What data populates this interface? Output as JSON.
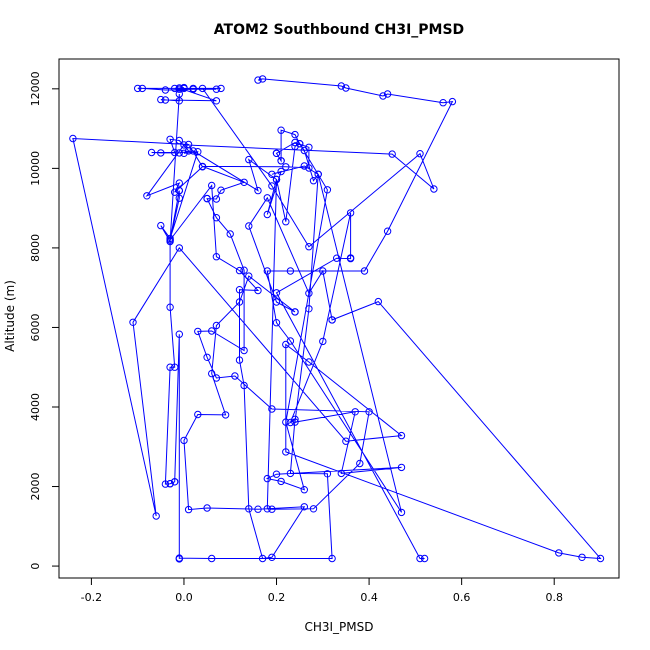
{
  "chart_data": {
    "type": "line",
    "title": "ATOM2 Southbound CH3I_PMSD",
    "xlabel": "CH3I_PMSD",
    "ylabel": "Altitude (m)",
    "xlim": [
      -0.27,
      0.94
    ],
    "ylim": [
      -300,
      12750
    ],
    "xticks": [
      -0.2,
      0.0,
      0.2,
      0.4,
      0.6,
      0.8
    ],
    "xtick_labels": [
      "-0.2",
      "0.0",
      "0.2",
      "0.4",
      "0.6",
      "0.8"
    ],
    "yticks": [
      0,
      2000,
      4000,
      6000,
      8000,
      10000,
      12000
    ],
    "ytick_labels": [
      "0",
      "2000",
      "4000",
      "6000",
      "8000",
      "10000",
      "12000"
    ],
    "grid": false,
    "colors": {
      "series": "#0000ff",
      "axes": "#000000",
      "background": "#ffffff"
    },
    "series": [
      {
        "points": [
          [
            0.16,
            12220
          ],
          [
            0.17,
            12250
          ],
          [
            0.34,
            12070
          ],
          [
            0.35,
            12020
          ],
          [
            0.43,
            11820
          ],
          [
            0.44,
            11870
          ],
          [
            0.56,
            11650
          ],
          [
            0.58,
            11680
          ],
          [
            0.44,
            8420
          ],
          [
            0.39,
            7420
          ],
          [
            0.23,
            7420
          ],
          [
            0.18,
            7420
          ],
          [
            0.2,
            6120
          ],
          [
            0.23,
            5660
          ],
          [
            0.47,
            1350
          ],
          [
            0.29,
            9850
          ],
          [
            0.27,
            6470
          ],
          [
            0.24,
            3620
          ],
          [
            0.37,
            3880
          ],
          [
            0.34,
            2330
          ],
          [
            0.47,
            2480
          ],
          [
            0.2,
            2310
          ],
          [
            0.18,
            2200
          ],
          [
            0.21,
            2130
          ],
          [
            0.26,
            1920
          ],
          [
            0.22,
            3620
          ],
          [
            0.31,
            9460
          ],
          [
            0.25,
            10620
          ],
          [
            0.24,
            10550
          ],
          [
            0.22,
            8660
          ],
          [
            0.2,
            9720
          ],
          [
            0.18,
            8840
          ],
          [
            0.21,
            9920
          ],
          [
            0.19,
            9850
          ],
          [
            0.26,
            10060
          ],
          [
            0.29,
            9850
          ],
          [
            0.28,
            9690
          ],
          [
            0.26,
            10450
          ],
          [
            0.25,
            10620
          ],
          [
            0.24,
            10850
          ],
          [
            0.21,
            10960
          ],
          [
            0.21,
            10190
          ],
          [
            0.21,
            10190
          ],
          [
            0.2,
            10380
          ],
          [
            0.2,
            10380
          ],
          [
            0.24,
            10650
          ],
          [
            0.27,
            10530
          ],
          [
            0.27,
            10010
          ],
          [
            0.22,
            10040
          ],
          [
            0.04,
            10050
          ],
          [
            0.13,
            9650
          ],
          [
            0.08,
            9450
          ],
          [
            0.07,
            9230
          ],
          [
            0.05,
            9240
          ],
          [
            0.05,
            9240
          ],
          [
            0.07,
            8760
          ],
          [
            0.1,
            8350
          ],
          [
            0.13,
            7440
          ],
          [
            0.13,
            5420
          ],
          [
            0.06,
            5910
          ],
          [
            0.03,
            5900
          ],
          [
            0.05,
            5250
          ],
          [
            0.07,
            4730
          ],
          [
            0.11,
            4780
          ],
          [
            0.19,
            3950
          ],
          [
            0.4,
            3880
          ],
          [
            0.38,
            2580
          ],
          [
            0.28,
            1440
          ],
          [
            0.19,
            1430
          ],
          [
            0.18,
            1440
          ],
          [
            0.2,
            9720
          ],
          [
            0.14,
            10220
          ],
          [
            0.16,
            9440
          ],
          [
            0.02,
            10440
          ],
          [
            -0.01,
            10390
          ],
          [
            -0.05,
            10390
          ],
          [
            -0.07,
            10400
          ],
          [
            -0.02,
            10400
          ],
          [
            -0.03,
            10730
          ],
          [
            -0.01,
            10700
          ],
          [
            0.01,
            10440
          ],
          [
            0.0,
            10380
          ],
          [
            0.03,
            10420
          ],
          [
            -0.03,
            8240
          ],
          [
            -0.05,
            8560
          ],
          [
            -0.03,
            8160
          ],
          [
            -0.01,
            11870
          ],
          [
            -0.01,
            11700
          ],
          [
            -0.05,
            11730
          ],
          [
            -0.04,
            11720
          ],
          [
            0.07,
            11700
          ],
          [
            -0.01,
            12020
          ],
          [
            0.0,
            12030
          ],
          [
            -0.02,
            12010
          ],
          [
            -0.01,
            11990
          ],
          [
            0.07,
            11990
          ],
          [
            0.02,
            11990
          ],
          [
            -0.04,
            11970
          ],
          [
            -0.09,
            12010
          ],
          [
            -0.1,
            12010
          ],
          [
            0.0,
            12010
          ],
          [
            0.02,
            12010
          ],
          [
            0.08,
            12010
          ],
          [
            0.04,
            12010
          ],
          [
            0.19,
            9560
          ],
          [
            0.27,
            8030
          ],
          [
            0.51,
            10370
          ],
          [
            0.54,
            9480
          ],
          [
            0.45,
            10360
          ],
          [
            0.0,
            10590
          ],
          [
            -0.08,
            9310
          ],
          [
            -0.01,
            9630
          ],
          [
            -0.02,
            9400
          ],
          [
            0.04,
            10040
          ],
          [
            0.01,
            10600
          ],
          [
            -0.24,
            10750
          ],
          [
            -0.06,
            1260
          ],
          [
            -0.11,
            6130
          ],
          [
            -0.01,
            8000
          ],
          [
            0.35,
            3140
          ],
          [
            0.47,
            3280
          ],
          [
            0.27,
            5130
          ],
          [
            0.22,
            5570
          ],
          [
            0.22,
            2870
          ],
          [
            0.81,
            330
          ],
          [
            0.86,
            220
          ],
          [
            0.9,
            190
          ],
          [
            0.42,
            6650
          ],
          [
            0.32,
            6190
          ],
          [
            0.32,
            6190
          ],
          [
            0.3,
            7420
          ],
          [
            0.27,
            6860
          ],
          [
            0.18,
            9260
          ],
          [
            0.14,
            8550
          ],
          [
            0.2,
            6640
          ],
          [
            0.24,
            6390
          ],
          [
            0.24,
            6390
          ],
          [
            0.14,
            7290
          ],
          [
            0.12,
            6640
          ],
          [
            0.07,
            6050
          ],
          [
            0.06,
            4840
          ],
          [
            0.09,
            3800
          ],
          [
            0.03,
            3810
          ],
          [
            0.0,
            3160
          ],
          [
            0.01,
            1420
          ],
          [
            0.05,
            1460
          ],
          [
            0.16,
            1430
          ],
          [
            0.26,
            1490
          ],
          [
            0.19,
            220
          ],
          [
            0.17,
            190
          ],
          [
            0.14,
            1440
          ],
          [
            0.13,
            4540
          ],
          [
            0.12,
            5180
          ],
          [
            0.12,
            6950
          ],
          [
            0.16,
            6930
          ],
          [
            0.12,
            7430
          ],
          [
            0.07,
            7780
          ],
          [
            0.06,
            9570
          ],
          [
            -0.03,
            8200
          ],
          [
            -0.01,
            9440
          ],
          [
            -0.01,
            9440
          ],
          [
            -0.01,
            9250
          ],
          [
            -0.03,
            8200
          ],
          [
            -0.03,
            6510
          ],
          [
            -0.02,
            5000
          ],
          [
            -0.03,
            5000
          ],
          [
            -0.04,
            2060
          ],
          [
            -0.03,
            2070
          ],
          [
            -0.03,
            2070
          ],
          [
            -0.02,
            2120
          ],
          [
            -0.02,
            2120
          ],
          [
            -0.01,
            5830
          ],
          [
            -0.01,
            180
          ],
          [
            -0.01,
            200
          ],
          [
            0.06,
            190
          ],
          [
            0.32,
            190
          ],
          [
            0.31,
            2320
          ],
          [
            0.23,
            2330
          ],
          [
            0.24,
            3690
          ],
          [
            0.23,
            3610
          ],
          [
            0.3,
            5650
          ],
          [
            0.36,
            8880
          ],
          [
            0.36,
            7750
          ],
          [
            0.36,
            7730
          ],
          [
            0.33,
            7740
          ],
          [
            0.2,
            6870
          ],
          [
            0.51,
            190
          ],
          [
            0.52,
            190
          ]
        ]
      }
    ]
  }
}
